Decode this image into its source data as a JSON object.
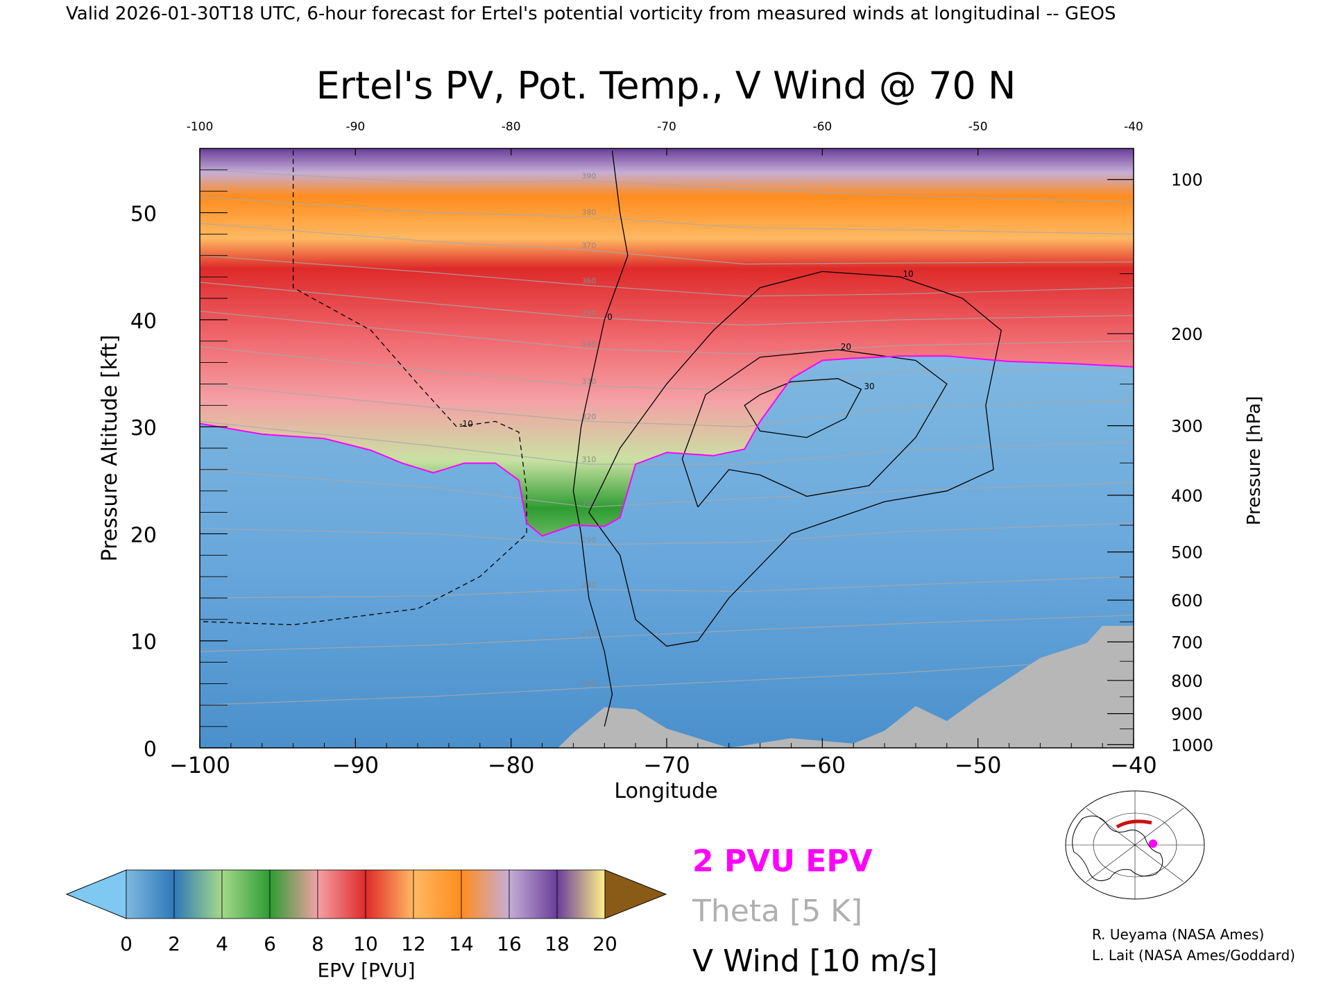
{
  "header": "Valid 2026-01-30T18 UTC, 6-hour forecast for Ertel's potential vorticity from measured winds at longitudinal -- GEOS",
  "chart_data": {
    "type": "heatmap",
    "title": "Ertel's PV, Pot. Temp., V Wind @ 70 N",
    "xlabel": "Longitude",
    "ylabel": "Pressure Altitude [kft]",
    "y2label": "Pressure [hPa]",
    "xlim": [
      -100,
      -40
    ],
    "ylim": [
      0,
      56
    ],
    "x_ticks": [
      -100,
      -90,
      -80,
      -70,
      -60,
      -50,
      -40
    ],
    "x_tick_labels": [
      "−100",
      "−90",
      "−80",
      "−70",
      "−60",
      "−50",
      "−40"
    ],
    "top_tick_labels": [
      "-100",
      "-90",
      "-80",
      "-70",
      "-60",
      "-50",
      "-40"
    ],
    "y_ticks": [
      0,
      10,
      20,
      30,
      40,
      50
    ],
    "y_tick_labels": [
      "0",
      "10",
      "20",
      "30",
      "40",
      "50"
    ],
    "pressure_ticks": [
      {
        "hPa": 100,
        "kft": 53.1,
        "label": "100"
      },
      {
        "hPa": 200,
        "kft": 38.7,
        "label": "200"
      },
      {
        "hPa": 300,
        "kft": 30.1,
        "label": "300"
      },
      {
        "hPa": 400,
        "kft": 23.6,
        "label": "400"
      },
      {
        "hPa": 500,
        "kft": 18.3,
        "label": "500"
      },
      {
        "hPa": 600,
        "kft": 13.8,
        "label": "600"
      },
      {
        "hPa": 700,
        "kft": 9.9,
        "label": "700"
      },
      {
        "hPa": 800,
        "kft": 6.3,
        "label": "800"
      },
      {
        "hPa": 900,
        "kft": 3.2,
        "label": "900"
      },
      {
        "hPa": 1000,
        "kft": 0.3,
        "label": "1000"
      }
    ],
    "tropopause_2pvu": {
      "name": "2 PVU EPV",
      "color": "#ff00ff",
      "points": [
        [
          -100,
          30.3
        ],
        [
          -96,
          29.3
        ],
        [
          -92,
          28.9
        ],
        [
          -89,
          27.8
        ],
        [
          -87,
          26.6
        ],
        [
          -85,
          25.7
        ],
        [
          -83,
          26.6
        ],
        [
          -81,
          26.6
        ],
        [
          -79.5,
          25
        ],
        [
          -79,
          21
        ],
        [
          -78,
          19.8
        ],
        [
          -76,
          20.8
        ],
        [
          -74,
          20.7
        ],
        [
          -73,
          21.5
        ],
        [
          -72,
          26.5
        ],
        [
          -70,
          27.6
        ],
        [
          -67,
          27.3
        ],
        [
          -65,
          27.9
        ],
        [
          -64,
          30.5
        ],
        [
          -62,
          34.5
        ],
        [
          -60,
          36.2
        ],
        [
          -58,
          36.4
        ],
        [
          -55,
          36.6
        ],
        [
          -52,
          36.6
        ],
        [
          -48,
          36.1
        ],
        [
          -44,
          35.9
        ],
        [
          -40,
          35.6
        ]
      ]
    },
    "theta_contours": [
      {
        "label": "390",
        "points": [
          [
            -100,
            54.0
          ],
          [
            -85,
            52.8
          ],
          [
            -75,
            53.0
          ],
          [
            -65,
            52.2
          ],
          [
            -55,
            51.6
          ],
          [
            -40,
            51.0
          ]
        ]
      },
      {
        "label": "380",
        "points": [
          [
            -100,
            51.5
          ],
          [
            -85,
            50.0
          ],
          [
            -75,
            49.6
          ],
          [
            -65,
            48.6
          ],
          [
            -55,
            48.4
          ],
          [
            -40,
            48.0
          ]
        ]
      },
      {
        "label": "370",
        "points": [
          [
            -100,
            49.0
          ],
          [
            -85,
            47.3
          ],
          [
            -75,
            46.5
          ],
          [
            -65,
            45.2
          ],
          [
            -55,
            45.3
          ],
          [
            -40,
            45.4
          ]
        ]
      },
      {
        "label": "360",
        "points": [
          [
            -100,
            46.0
          ],
          [
            -85,
            44.4
          ],
          [
            -75,
            43.2
          ],
          [
            -65,
            42.2
          ],
          [
            -55,
            42.4
          ],
          [
            -40,
            43.0
          ]
        ]
      },
      {
        "label": "350",
        "points": [
          [
            -100,
            43.5
          ],
          [
            -85,
            41.5
          ],
          [
            -75,
            40.2
          ],
          [
            -65,
            39.5
          ],
          [
            -55,
            40.0
          ],
          [
            -40,
            40.4
          ]
        ]
      },
      {
        "label": "340",
        "points": [
          [
            -100,
            40.8
          ],
          [
            -85,
            38.7
          ],
          [
            -75,
            37.3
          ],
          [
            -65,
            36.8
          ],
          [
            -55,
            37.6
          ],
          [
            -40,
            38.0
          ]
        ]
      },
      {
        "label": "330",
        "points": [
          [
            -100,
            37.5
          ],
          [
            -85,
            35.2
          ],
          [
            -75,
            33.8
          ],
          [
            -65,
            33.4
          ],
          [
            -55,
            35.2
          ],
          [
            -40,
            35.5
          ]
        ]
      },
      {
        "label": "320",
        "points": [
          [
            -100,
            34.0
          ],
          [
            -85,
            31.8
          ],
          [
            -75,
            30.5
          ],
          [
            -65,
            30.0
          ],
          [
            -55,
            31.8
          ],
          [
            -40,
            32.5
          ]
        ]
      },
      {
        "label": "310",
        "points": [
          [
            -100,
            30.5
          ],
          [
            -85,
            28.2
          ],
          [
            -75,
            26.5
          ],
          [
            -65,
            26.5
          ],
          [
            -55,
            27.8
          ],
          [
            -40,
            28.6
          ]
        ]
      },
      {
        "label": "300",
        "points": [
          [
            -100,
            26.0
          ],
          [
            -85,
            24.3
          ],
          [
            -75,
            22.5
          ],
          [
            -65,
            23.3
          ],
          [
            -55,
            24.0
          ],
          [
            -40,
            24.8
          ]
        ]
      },
      {
        "label": "290",
        "points": [
          [
            -100,
            20.5
          ],
          [
            -85,
            20.0
          ],
          [
            -75,
            19.0
          ],
          [
            -65,
            19.2
          ],
          [
            -55,
            20.2
          ],
          [
            -40,
            21.0
          ]
        ]
      },
      {
        "label": "280",
        "points": [
          [
            -100,
            14.0
          ],
          [
            -85,
            14.2
          ],
          [
            -75,
            14.8
          ],
          [
            -65,
            14.6
          ],
          [
            -55,
            15.2
          ],
          [
            -40,
            16.0
          ]
        ]
      },
      {
        "label": "270",
        "points": [
          [
            -100,
            9.0
          ],
          [
            -85,
            9.6
          ],
          [
            -75,
            10.3
          ],
          [
            -65,
            11.0
          ],
          [
            -55,
            11.6
          ],
          [
            -40,
            12.4
          ]
        ]
      },
      {
        "label": "260",
        "points": [
          [
            -100,
            4.0
          ],
          [
            -85,
            4.8
          ],
          [
            -75,
            5.6
          ],
          [
            -65,
            6.3
          ],
          [
            -55,
            7.0
          ],
          [
            -40,
            8.4
          ]
        ]
      }
    ],
    "vwind_contours": [
      {
        "label": "0",
        "style": "solid",
        "points": [
          [
            -73.5,
            55.8
          ],
          [
            -73,
            50
          ],
          [
            -72.5,
            46
          ],
          [
            -74,
            40
          ],
          [
            -75.5,
            30
          ],
          [
            -76,
            24
          ],
          [
            -75.5,
            20
          ],
          [
            -75,
            14
          ],
          [
            -74,
            9
          ],
          [
            -73.5,
            5
          ],
          [
            -74,
            2
          ]
        ]
      },
      {
        "label": "-10",
        "style": "dashed",
        "points": [
          [
            -94,
            55.8
          ],
          [
            -94,
            43
          ],
          [
            -89,
            39
          ],
          [
            -86,
            34
          ],
          [
            -83.5,
            30
          ],
          [
            -81,
            30.5
          ],
          [
            -79.5,
            29.5
          ],
          [
            -79,
            24
          ],
          [
            -79,
            20
          ],
          [
            -82,
            16
          ],
          [
            -86,
            13
          ],
          [
            -94,
            11.5
          ],
          [
            -100,
            11.8
          ]
        ]
      },
      {
        "label": "10",
        "style": "solid",
        "points": [
          [
            -75,
            22
          ],
          [
            -73,
            28
          ],
          [
            -70,
            34
          ],
          [
            -67,
            39
          ],
          [
            -64,
            43
          ],
          [
            -60,
            44.5
          ],
          [
            -55,
            44
          ],
          [
            -51,
            42
          ],
          [
            -48.5,
            39
          ],
          [
            -49.5,
            32
          ],
          [
            -49,
            26
          ],
          [
            -52,
            24
          ],
          [
            -56,
            23
          ],
          [
            -62,
            20
          ],
          [
            -66,
            14
          ],
          [
            -68,
            10
          ],
          [
            -70,
            9.5
          ],
          [
            -72,
            12
          ],
          [
            -73,
            18
          ],
          [
            -75,
            22
          ]
        ]
      },
      {
        "label": "20",
        "style": "solid",
        "points": [
          [
            -68,
            22.5
          ],
          [
            -69,
            27
          ],
          [
            -67.5,
            33
          ],
          [
            -64,
            36.5
          ],
          [
            -59,
            37.2
          ],
          [
            -54,
            36.2
          ],
          [
            -52,
            34
          ],
          [
            -54,
            29
          ],
          [
            -57,
            24.5
          ],
          [
            -61,
            23.5
          ],
          [
            -64,
            25.5
          ],
          [
            -66,
            26
          ],
          [
            -68,
            22.5
          ]
        ]
      },
      {
        "label": "30",
        "style": "solid",
        "points": [
          [
            -64,
            33
          ],
          [
            -62,
            34.2
          ],
          [
            -59,
            34.5
          ],
          [
            -57.5,
            33.5
          ],
          [
            -58.5,
            30.8
          ],
          [
            -61,
            29
          ],
          [
            -64,
            29.6
          ],
          [
            -65,
            32
          ],
          [
            -64,
            33
          ]
        ]
      }
    ],
    "terrain_profile": [
      [
        -100,
        0
      ],
      [
        -77,
        0
      ],
      [
        -76,
        1.4
      ],
      [
        -74,
        3.8
      ],
      [
        -72,
        3.6
      ],
      [
        -70,
        1.8
      ],
      [
        -66,
        0
      ],
      [
        -62,
        0.9
      ],
      [
        -58,
        0.4
      ],
      [
        -56,
        1.6
      ],
      [
        -54,
        3.9
      ],
      [
        -52,
        2.5
      ],
      [
        -50,
        4.6
      ],
      [
        -48,
        6.5
      ],
      [
        -46,
        8.4
      ],
      [
        -43,
        9.8
      ],
      [
        -42,
        11.4
      ],
      [
        -40,
        11.4
      ]
    ],
    "colorbar": {
      "label": "EPV [PVU]",
      "min": 0,
      "max": 20,
      "step": 2,
      "tick_labels": [
        "0",
        "2",
        "4",
        "6",
        "8",
        "10",
        "12",
        "14",
        "16",
        "18",
        "20"
      ],
      "under_color": "#7ec8f2",
      "over_color": "#8a5a17",
      "colors": [
        "#7fb8e0",
        "#2f78b8",
        "#a4d98a",
        "#2e9c32",
        "#f4a0a5",
        "#de2a2a",
        "#ffb963",
        "#ff8c1e",
        "#c5aed6",
        "#6a3d99",
        "#fff18a",
        "#d9a64a"
      ]
    },
    "legend": [
      {
        "text": "2 PVU EPV",
        "color": "#ff00ff"
      },
      {
        "text": "Theta [5 K]",
        "color": "#b0b0b0"
      },
      {
        "text": "V Wind [10 m/s]",
        "color": "#000000"
      }
    ],
    "credits": [
      "R. Ueyama (NASA Ames)",
      "L. Lait (NASA Ames/Goddard)"
    ],
    "inset_map": {
      "marker_color": "#ff00ff",
      "section_color": "#cc1111"
    }
  }
}
